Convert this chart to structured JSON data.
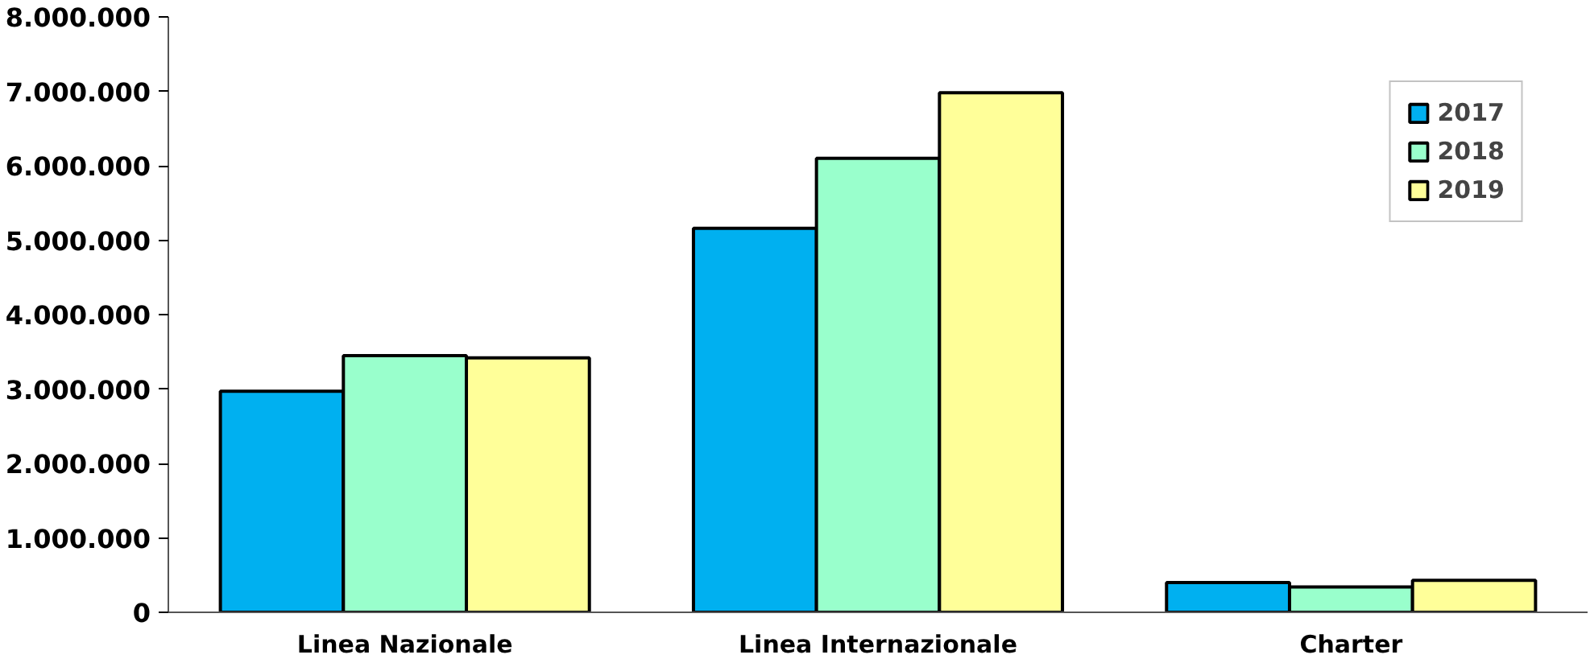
{
  "chart_data": {
    "type": "bar",
    "categories": [
      "Linea Nazionale",
      "Linea Internazionale",
      "Charter"
    ],
    "series": [
      {
        "name": "2017",
        "color": "#00b0f0",
        "values": [
          2970000,
          5160000,
          400000
        ]
      },
      {
        "name": "2018",
        "color": "#99ffcc",
        "values": [
          3450000,
          6100000,
          340000
        ]
      },
      {
        "name": "2019",
        "color": "#ffff99",
        "values": [
          3420000,
          6980000,
          430000
        ]
      }
    ],
    "ylim": [
      0,
      8000000
    ],
    "yticks": [
      {
        "value": 0,
        "label": "0"
      },
      {
        "value": 1000000,
        "label": "1.000.000"
      },
      {
        "value": 2000000,
        "label": "2.000.000"
      },
      {
        "value": 3000000,
        "label": "3.000.000"
      },
      {
        "value": 4000000,
        "label": "4.000.000"
      },
      {
        "value": 5000000,
        "label": "5.000.000"
      },
      {
        "value": 6000000,
        "label": "6.000.000"
      },
      {
        "value": 7000000,
        "label": "7.000.000"
      },
      {
        "value": 8000000,
        "label": "8.000.000"
      }
    ],
    "grid": false,
    "legend": "top right"
  }
}
